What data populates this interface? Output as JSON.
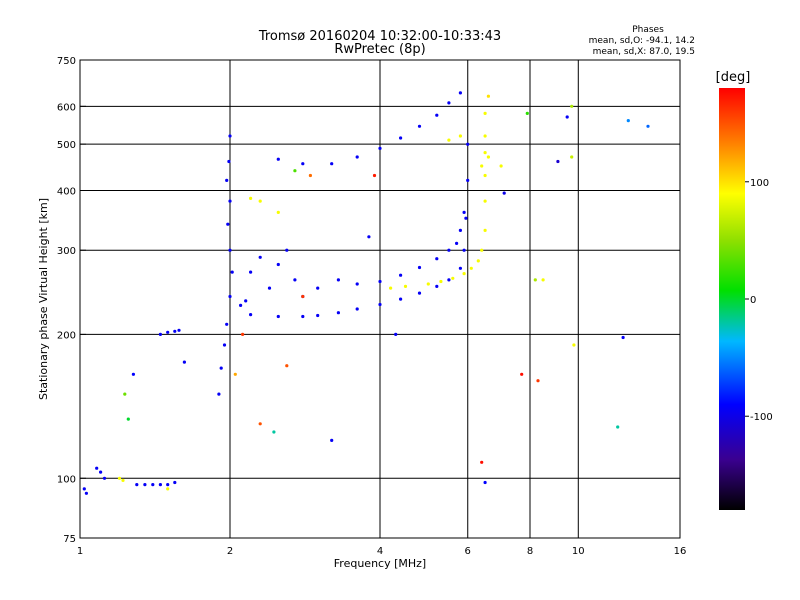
{
  "chart_data": {
    "type": "scatter",
    "title": "Tromsø 20160204 10:32:00-10:33:43",
    "subtitle": "RwPretec (8p)",
    "xlabel": "Frequency [MHz]",
    "ylabel": "Stationary phase Virtual Height [km]",
    "x_scale": "log",
    "y_scale": "log",
    "xlim": [
      1,
      16
    ],
    "ylim": [
      75,
      750
    ],
    "x_ticks": [
      1,
      2,
      4,
      6,
      8,
      10,
      16
    ],
    "y_ticks": [
      75,
      100,
      200,
      300,
      400,
      500,
      600,
      750
    ],
    "grid": true,
    "stats": {
      "header": "Phases",
      "line_o": "mean, sd,O: -94.1, 14.2",
      "line_x": "mean, sd,X:  87.0, 19.5"
    },
    "colorbar": {
      "label": "[deg]",
      "range": [
        -180,
        180
      ],
      "ticks": [
        100,
        0,
        -100
      ]
    },
    "series": [
      {
        "mode": "O",
        "phase_deg": -94,
        "points": [
          [
            1.02,
            95
          ],
          [
            1.03,
            93
          ],
          [
            1.08,
            105
          ],
          [
            1.1,
            103
          ],
          [
            1.12,
            100
          ],
          [
            1.3,
            97
          ],
          [
            1.35,
            97
          ],
          [
            1.4,
            97
          ],
          [
            1.45,
            97
          ],
          [
            1.5,
            97
          ],
          [
            1.55,
            98
          ],
          [
            1.45,
            200
          ],
          [
            1.5,
            202
          ],
          [
            1.55,
            203
          ],
          [
            1.58,
            204
          ],
          [
            1.62,
            175
          ],
          [
            1.9,
            150
          ],
          [
            1.92,
            170
          ],
          [
            1.95,
            190
          ],
          [
            1.97,
            210
          ],
          [
            2.0,
            240
          ],
          [
            2.02,
            270
          ],
          [
            2.0,
            300
          ],
          [
            1.98,
            340
          ],
          [
            2.0,
            380
          ],
          [
            1.97,
            420
          ],
          [
            1.99,
            460
          ],
          [
            2.0,
            520
          ],
          [
            2.1,
            230
          ],
          [
            2.15,
            235
          ],
          [
            2.2,
            270
          ],
          [
            2.3,
            290
          ],
          [
            2.4,
            250
          ],
          [
            2.5,
            280
          ],
          [
            2.6,
            300
          ],
          [
            2.7,
            260
          ],
          [
            2.8,
            240
          ],
          [
            3.0,
            250
          ],
          [
            3.3,
            260
          ],
          [
            3.6,
            255
          ],
          [
            2.2,
            220
          ],
          [
            2.5,
            218
          ],
          [
            2.8,
            218
          ],
          [
            3.0,
            219
          ],
          [
            3.3,
            222
          ],
          [
            3.6,
            226
          ],
          [
            4.0,
            231
          ],
          [
            4.4,
            237
          ],
          [
            4.8,
            244
          ],
          [
            5.2,
            252
          ],
          [
            5.5,
            260
          ],
          [
            5.8,
            275
          ],
          [
            5.9,
            300
          ],
          [
            5.95,
            350
          ],
          [
            6.0,
            420
          ],
          [
            6.0,
            500
          ],
          [
            4.0,
            258
          ],
          [
            4.4,
            266
          ],
          [
            4.8,
            276
          ],
          [
            5.2,
            288
          ],
          [
            5.5,
            300
          ],
          [
            5.7,
            310
          ],
          [
            5.8,
            330
          ],
          [
            5.9,
            360
          ],
          [
            2.5,
            465
          ],
          [
            2.8,
            455
          ],
          [
            3.2,
            455
          ],
          [
            3.6,
            470
          ],
          [
            4.0,
            490
          ],
          [
            4.4,
            515
          ],
          [
            4.8,
            545
          ],
          [
            5.2,
            575
          ],
          [
            5.5,
            610
          ],
          [
            5.8,
            640
          ],
          [
            9.5,
            570
          ],
          [
            12.3,
            197
          ],
          [
            3.2,
            120
          ],
          [
            3.8,
            320
          ],
          [
            4.3,
            200
          ]
        ]
      },
      {
        "mode": "X",
        "phase_deg": 87,
        "points": [
          [
            1.2,
            100
          ],
          [
            1.22,
            99
          ],
          [
            1.5,
            95
          ],
          [
            2.2,
            385
          ],
          [
            2.3,
            380
          ],
          [
            2.5,
            360
          ],
          [
            4.2,
            250
          ],
          [
            4.5,
            252
          ],
          [
            5.0,
            255
          ],
          [
            5.3,
            258
          ],
          [
            5.6,
            262
          ],
          [
            5.9,
            268
          ],
          [
            6.1,
            275
          ],
          [
            6.3,
            285
          ],
          [
            6.4,
            300
          ],
          [
            6.5,
            330
          ],
          [
            6.5,
            380
          ],
          [
            6.5,
            430
          ],
          [
            6.5,
            480
          ],
          [
            6.5,
            520
          ],
          [
            6.5,
            580
          ],
          [
            5.5,
            510
          ],
          [
            5.8,
            520
          ],
          [
            6.4,
            450
          ],
          [
            6.6,
            470
          ],
          [
            7.0,
            450
          ],
          [
            8.5,
            260
          ],
          [
            9.8,
            190
          ]
        ]
      },
      {
        "mode": "scattered",
        "phase_deg": null,
        "points": [
          [
            1.25,
            133,
            0
          ],
          [
            1.28,
            165,
            -90
          ],
          [
            1.23,
            150,
            40
          ],
          [
            2.05,
            165,
            120
          ],
          [
            2.12,
            200,
            160
          ],
          [
            2.3,
            130,
            150
          ],
          [
            2.45,
            125,
            -20
          ],
          [
            2.6,
            172,
            150
          ],
          [
            2.8,
            240,
            160
          ],
          [
            2.9,
            430,
            140
          ],
          [
            2.7,
            440,
            30
          ],
          [
            3.9,
            430,
            170
          ],
          [
            6.4,
            108,
            175
          ],
          [
            6.5,
            98,
            -90
          ],
          [
            6.6,
            630,
            100
          ],
          [
            7.1,
            395,
            -100
          ],
          [
            7.7,
            165,
            175
          ],
          [
            8.3,
            160,
            160
          ],
          [
            9.1,
            460,
            -110
          ],
          [
            9.7,
            600,
            60
          ],
          [
            9.7,
            470,
            70
          ],
          [
            7.9,
            580,
            20
          ],
          [
            8.2,
            260,
            60
          ],
          [
            12.0,
            128,
            -20
          ],
          [
            12.6,
            560,
            -50
          ],
          [
            13.8,
            545,
            -60
          ]
        ]
      }
    ]
  }
}
